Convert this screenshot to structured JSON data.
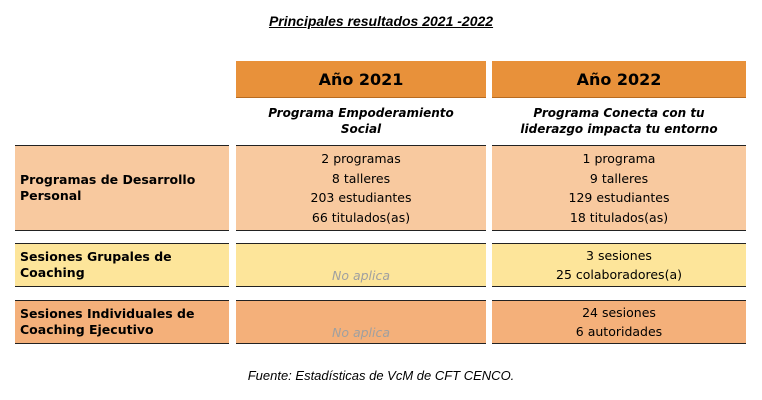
{
  "title": "Principales resultados 2021 -2022",
  "columns": [
    {
      "year": "Año 2021",
      "program": "Programa Empoderamiento Social"
    },
    {
      "year": "Año 2022",
      "program": "Programa Conecta con tu liderazgo impacta tu entorno"
    }
  ],
  "rows": [
    {
      "label": "Programas de Desarrollo Personal",
      "y2021": [
        "2 programas",
        "8 talleres",
        "203 estudiantes",
        "66 titulados(as)"
      ],
      "y2022": [
        "1 programa",
        "9 talleres",
        "129 estudiantes",
        "18 titulados(as)"
      ]
    },
    {
      "label": "Sesiones Grupales de Coaching",
      "y2021_na": "No aplica",
      "y2022": [
        "3 sesiones",
        "25 colaboradores(a)"
      ]
    },
    {
      "label": "Sesiones Individuales de Coaching Ejecutivo",
      "y2021_na": "No aplica",
      "y2022": [
        "24 sesiones",
        "6 autoridades"
      ]
    }
  ],
  "source": "Fuente: Estadísticas de VcM de CFT CENCO.",
  "colors": {
    "header": "#E8913A",
    "row1": "#F8C99F",
    "row2": "#FDE59A",
    "row3": "#F4B07A"
  }
}
